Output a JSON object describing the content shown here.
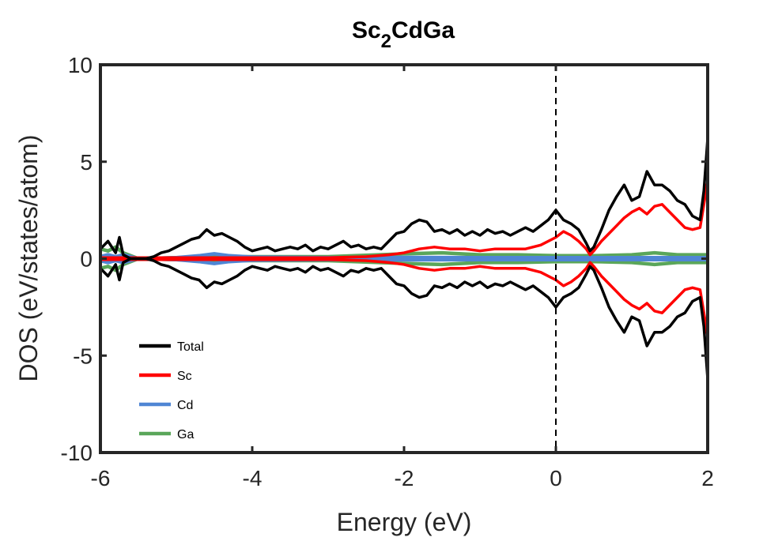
{
  "chart_data": {
    "type": "line",
    "title": {
      "main": "Sc",
      "sub": "2",
      "rest": "CdGa"
    },
    "xlabel": "Energy (eV)",
    "ylabel": "DOS (eV/states/atom)",
    "xlim": [
      -6,
      2
    ],
    "ylim": [
      -10,
      10
    ],
    "xticks": [
      -6,
      -4,
      -2,
      0,
      2
    ],
    "xtick_labels": [
      "-6",
      "-4",
      "-2",
      "0",
      "2"
    ],
    "yticks": [
      -10,
      -5,
      0,
      5,
      10
    ],
    "ytick_labels": [
      "-10",
      "-5",
      "0",
      "5",
      "10"
    ],
    "grid": false,
    "fermi_level": 0,
    "legend_position": "bottom-left",
    "series": [
      {
        "name": "Total",
        "color": "#000000",
        "x": [
          -6.0,
          -5.9,
          -5.8,
          -5.75,
          -5.7,
          -5.6,
          -5.5,
          -5.4,
          -5.3,
          -5.2,
          -5.1,
          -5.0,
          -4.9,
          -4.8,
          -4.7,
          -4.6,
          -4.5,
          -4.4,
          -4.3,
          -4.2,
          -4.1,
          -4.0,
          -3.9,
          -3.8,
          -3.7,
          -3.6,
          -3.5,
          -3.4,
          -3.3,
          -3.2,
          -3.1,
          -3.0,
          -2.9,
          -2.8,
          -2.7,
          -2.6,
          -2.5,
          -2.4,
          -2.3,
          -2.2,
          -2.1,
          -2.0,
          -1.9,
          -1.8,
          -1.7,
          -1.6,
          -1.5,
          -1.4,
          -1.3,
          -1.2,
          -1.1,
          -1.0,
          -0.9,
          -0.8,
          -0.7,
          -0.6,
          -0.5,
          -0.4,
          -0.3,
          -0.2,
          -0.1,
          0.0,
          0.1,
          0.2,
          0.3,
          0.4,
          0.45,
          0.5,
          0.6,
          0.7,
          0.8,
          0.9,
          1.0,
          1.1,
          1.2,
          1.3,
          1.4,
          1.5,
          1.6,
          1.7,
          1.8,
          1.9,
          1.95,
          2.0
        ],
        "values": [
          0.5,
          0.9,
          0.3,
          1.1,
          0.2,
          0.0,
          0.0,
          0.0,
          0.1,
          0.3,
          0.4,
          0.6,
          0.8,
          1.0,
          1.1,
          1.5,
          1.2,
          1.3,
          1.1,
          0.9,
          0.6,
          0.4,
          0.5,
          0.6,
          0.4,
          0.5,
          0.6,
          0.5,
          0.7,
          0.4,
          0.6,
          0.5,
          0.7,
          0.9,
          0.6,
          0.7,
          0.5,
          0.6,
          0.5,
          0.9,
          1.3,
          1.4,
          1.8,
          2.0,
          1.9,
          1.4,
          1.5,
          1.3,
          1.5,
          1.2,
          1.4,
          1.2,
          1.5,
          1.3,
          1.4,
          1.2,
          1.4,
          1.6,
          1.4,
          1.7,
          2.0,
          2.5,
          2.0,
          1.8,
          1.5,
          0.8,
          0.4,
          0.6,
          1.5,
          2.5,
          3.2,
          3.8,
          3.0,
          3.2,
          4.5,
          3.8,
          3.8,
          3.5,
          3.0,
          2.8,
          2.2,
          2.0,
          3.5,
          6.2
        ]
      },
      {
        "name": "Sc",
        "color": "#ff0000",
        "x": [
          -6.0,
          -5.0,
          -4.0,
          -3.0,
          -2.5,
          -2.2,
          -2.0,
          -1.8,
          -1.6,
          -1.4,
          -1.2,
          -1.0,
          -0.8,
          -0.6,
          -0.4,
          -0.2,
          0.0,
          0.1,
          0.2,
          0.3,
          0.4,
          0.45,
          0.5,
          0.6,
          0.7,
          0.8,
          0.9,
          1.0,
          1.1,
          1.2,
          1.3,
          1.4,
          1.5,
          1.6,
          1.7,
          1.8,
          1.9,
          1.95,
          2.0
        ],
        "values": [
          0.05,
          0.05,
          0.05,
          0.05,
          0.1,
          0.2,
          0.3,
          0.5,
          0.6,
          0.5,
          0.5,
          0.4,
          0.5,
          0.5,
          0.5,
          0.7,
          1.1,
          1.4,
          1.2,
          0.9,
          0.5,
          0.2,
          0.4,
          0.9,
          1.3,
          1.7,
          2.1,
          2.4,
          2.6,
          2.3,
          2.7,
          2.8,
          2.4,
          2.0,
          1.6,
          1.5,
          1.6,
          2.8,
          4.0
        ]
      },
      {
        "name": "Cd",
        "color": "#4f86d4",
        "x": [
          -6.0,
          -5.9,
          -5.8,
          -5.7,
          -5.5,
          -5.0,
          -4.7,
          -4.5,
          -4.3,
          -4.0,
          -3.0,
          -2.0,
          -1.0,
          0.0,
          1.0,
          2.0
        ],
        "values": [
          0.1,
          0.2,
          0.1,
          0.2,
          0.0,
          0.05,
          0.15,
          0.25,
          0.15,
          0.08,
          0.05,
          0.06,
          0.05,
          0.05,
          0.05,
          0.05
        ]
      },
      {
        "name": "Ga",
        "color": "#5aa65a",
        "x": [
          -6.0,
          -5.9,
          -5.8,
          -5.7,
          -5.5,
          -5.0,
          -4.5,
          -4.0,
          -3.0,
          -2.0,
          -1.5,
          -1.0,
          -0.5,
          0.0,
          0.5,
          1.0,
          1.3,
          1.6,
          2.0
        ],
        "values": [
          0.5,
          0.4,
          0.6,
          0.3,
          0.0,
          0.05,
          0.1,
          0.1,
          0.1,
          0.25,
          0.3,
          0.2,
          0.2,
          0.15,
          0.15,
          0.2,
          0.3,
          0.2,
          0.2
        ]
      }
    ]
  }
}
